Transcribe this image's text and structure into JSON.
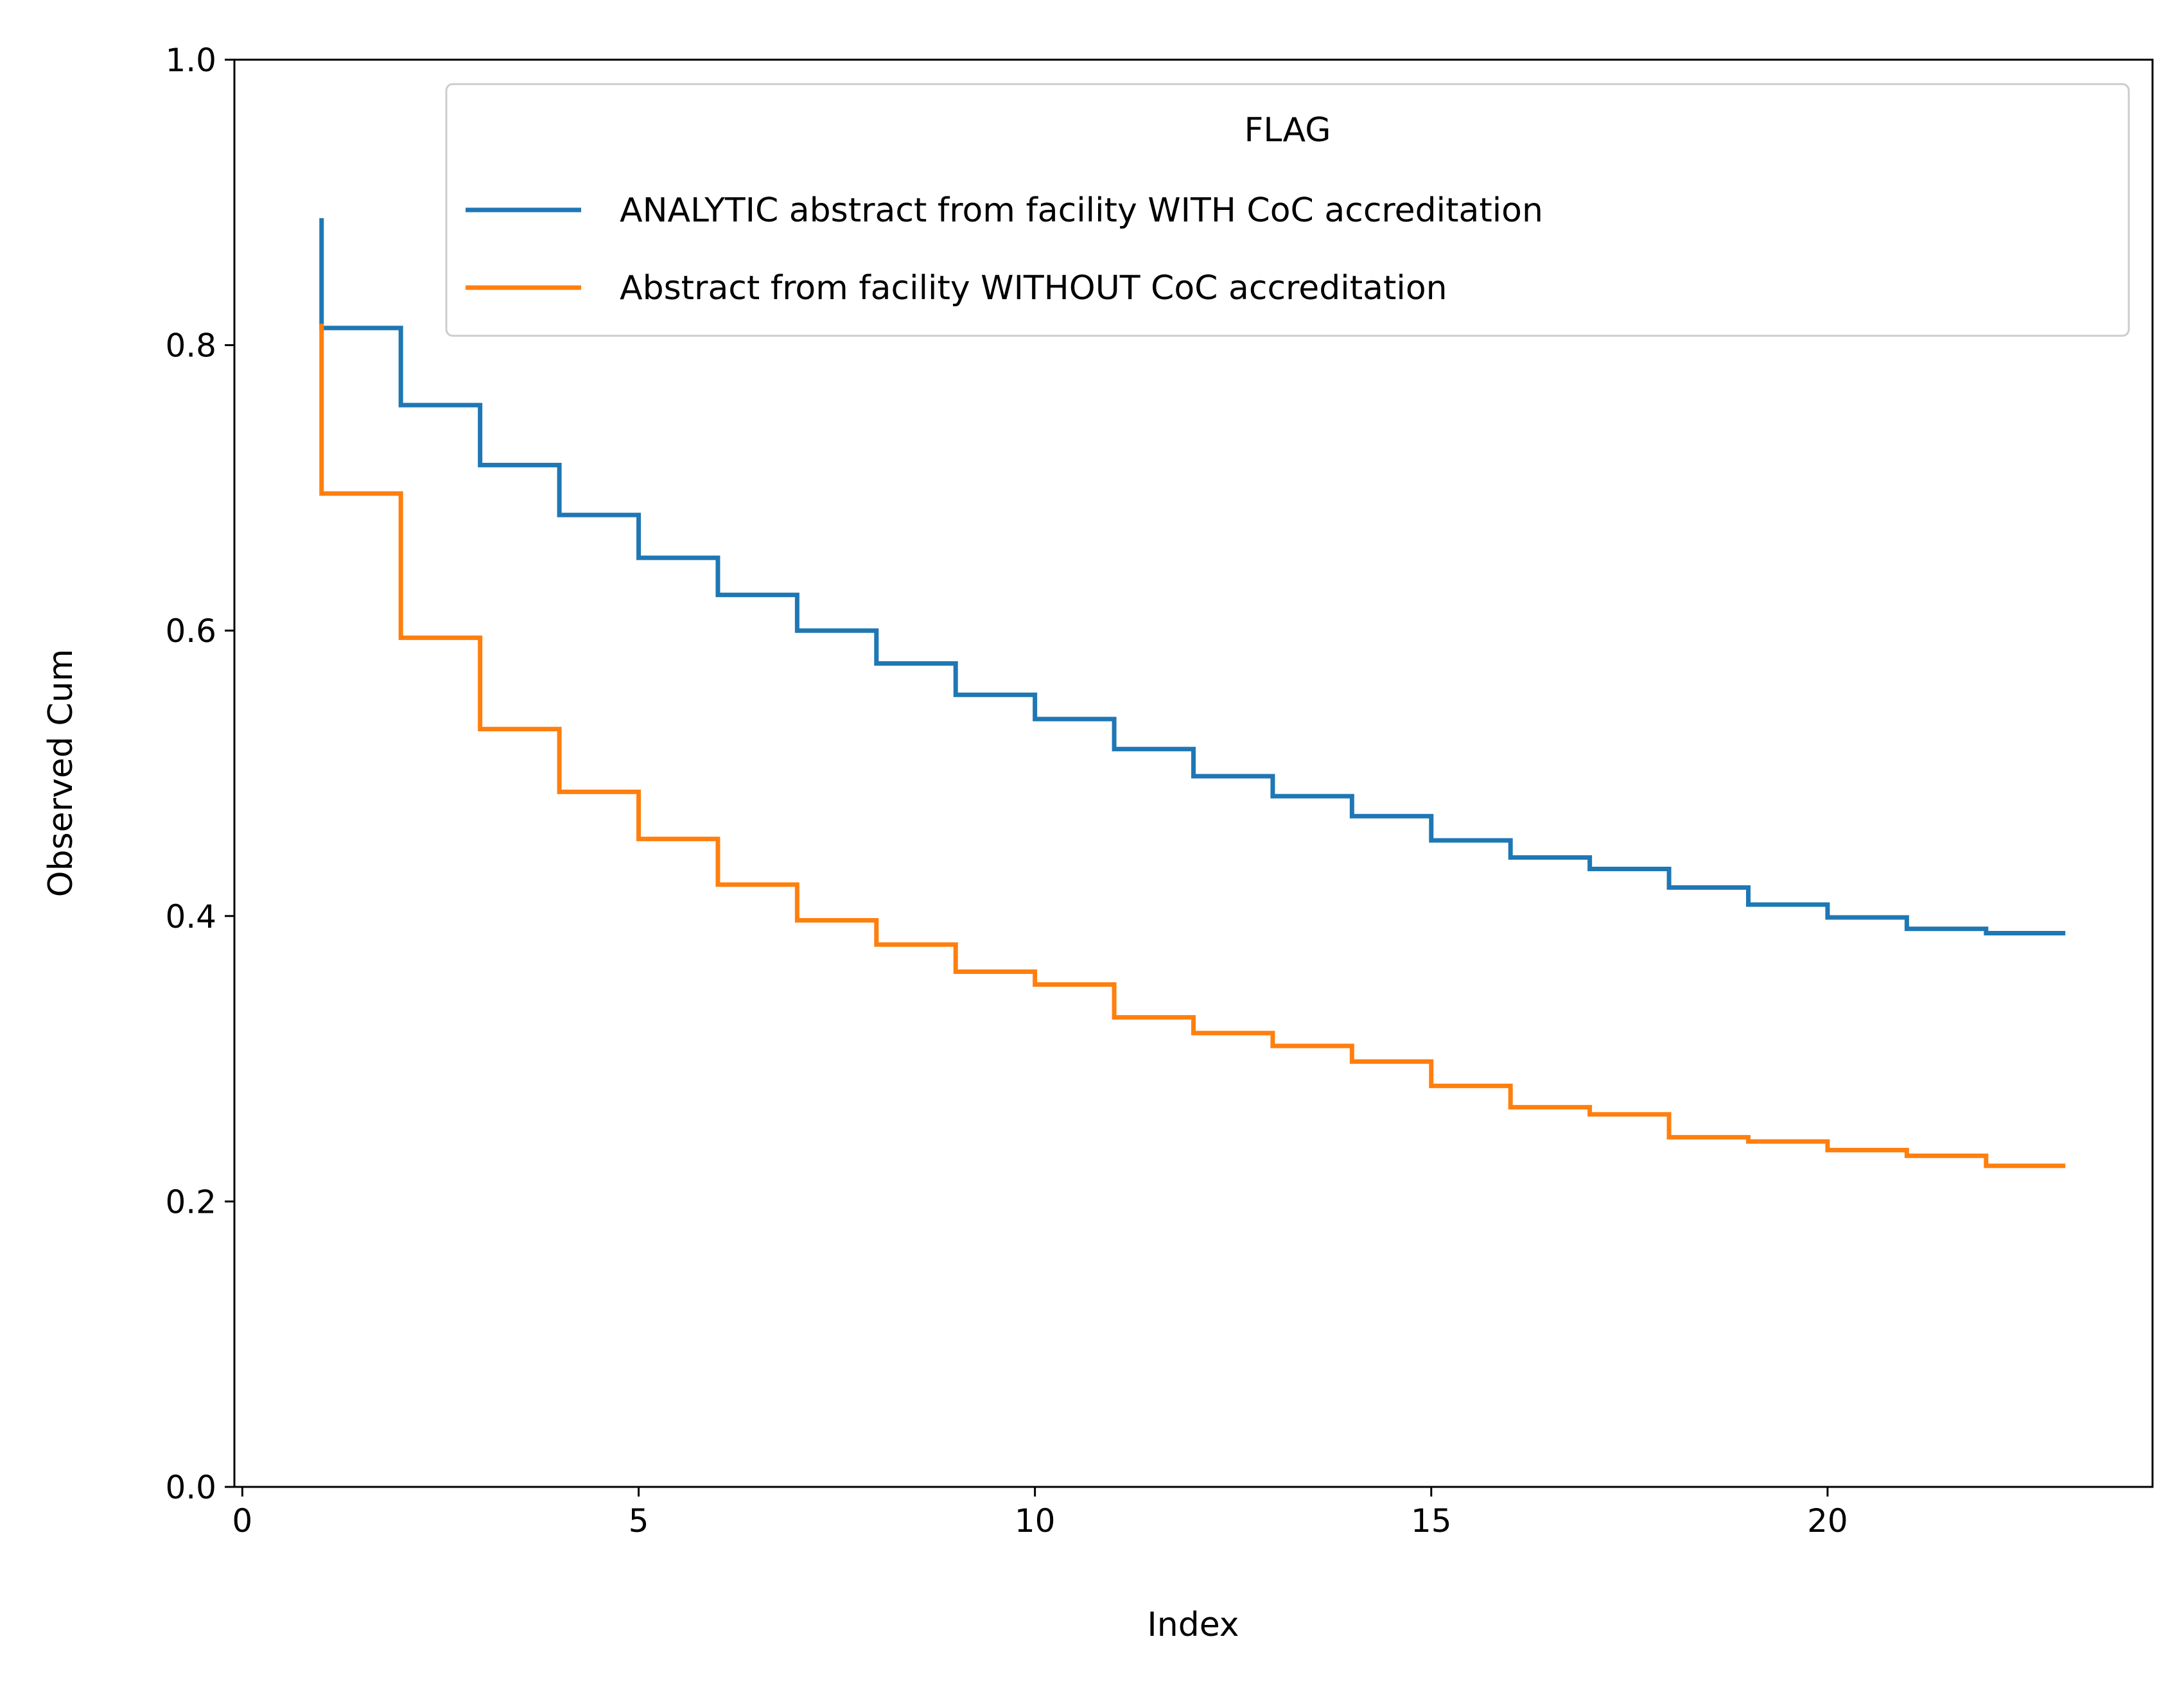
{
  "chart_data": {
    "type": "line",
    "drawstyle": "steps-post",
    "title": "",
    "xlabel": "Index",
    "ylabel": "Observed Cum",
    "xlim": [
      -0.1,
      24.1
    ],
    "ylim": [
      0.0,
      1.0
    ],
    "xticks": [
      0,
      5,
      10,
      15,
      20
    ],
    "yticks": [
      0.0,
      0.2,
      0.4,
      0.6,
      0.8,
      1.0
    ],
    "xtick_labels": [
      "0",
      "5",
      "10",
      "15",
      "20"
    ],
    "ytick_labels": [
      "0.0",
      "0.2",
      "0.4",
      "0.6",
      "0.8",
      "1.0"
    ],
    "grid": false,
    "legend": {
      "title": "FLAG",
      "position": "top-right"
    },
    "x": [
      1,
      2,
      3,
      4,
      5,
      6,
      7,
      8,
      9,
      10,
      11,
      12,
      13,
      14,
      15,
      16,
      17,
      18,
      19,
      20,
      21,
      22,
      23
    ],
    "series": [
      {
        "name": "ANALYTIC abstract from facility WITH CoC accreditation",
        "color": "#1f77b4",
        "start": 0.889,
        "values": [
          0.812,
          0.758,
          0.716,
          0.681,
          0.651,
          0.625,
          0.6,
          0.577,
          0.555,
          0.538,
          0.517,
          0.498,
          0.484,
          0.47,
          0.453,
          0.441,
          0.433,
          0.42,
          0.408,
          0.399,
          0.391,
          0.388,
          0.388
        ]
      },
      {
        "name": "Abstract from facility WITHOUT CoC accreditation",
        "color": "#ff7f0e",
        "start": 0.815,
        "values": [
          0.696,
          0.595,
          0.531,
          0.487,
          0.454,
          0.422,
          0.397,
          0.38,
          0.361,
          0.352,
          0.329,
          0.318,
          0.309,
          0.298,
          0.281,
          0.266,
          0.261,
          0.245,
          0.242,
          0.236,
          0.232,
          0.225,
          0.225
        ]
      }
    ]
  }
}
